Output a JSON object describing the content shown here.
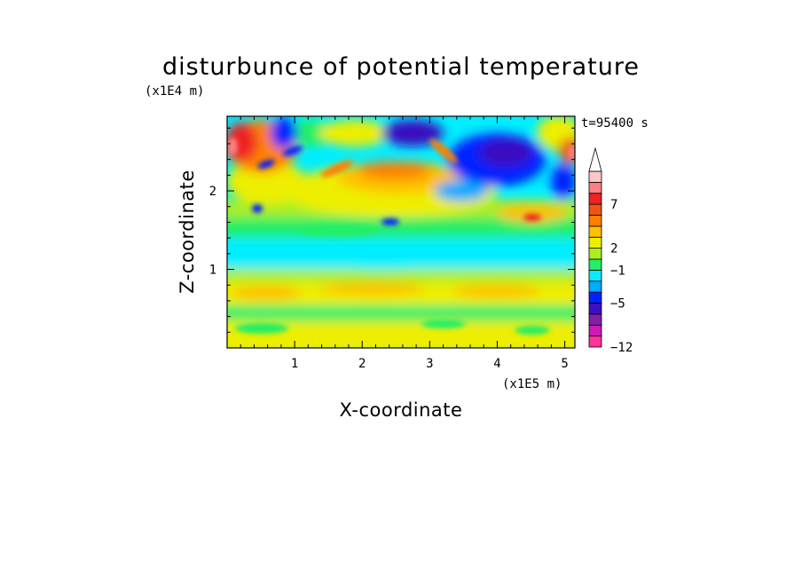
{
  "chart_data": {
    "type": "heatmap",
    "title": "disturbunce of potential temperature",
    "xlabel": "X-coordinate",
    "ylabel": "Z-coordinate",
    "x_unit": "(x1E5 m)",
    "y_unit": "(x1E4 m)",
    "time_label": "t=95400 s",
    "xlim": [
      0,
      5.15
    ],
    "ylim": [
      0,
      2.95
    ],
    "x_ticks": [
      "1",
      "2",
      "3",
      "4",
      "5"
    ],
    "y_ticks": [
      "1",
      "2"
    ],
    "colorbar": {
      "tick_labels": [
        "7",
        "2",
        "−1",
        "−5",
        "−12"
      ],
      "colors": [
        "#ff3399",
        "#cc1ab3",
        "#8020a8",
        "#3a10c0",
        "#0020ff",
        "#00aaff",
        "#00eeff",
        "#22ee66",
        "#aaee22",
        "#eeee00",
        "#ffc000",
        "#ff8000",
        "#ee5511",
        "#ee2222",
        "#ff8080",
        "#ffc8c8"
      ]
    }
  }
}
